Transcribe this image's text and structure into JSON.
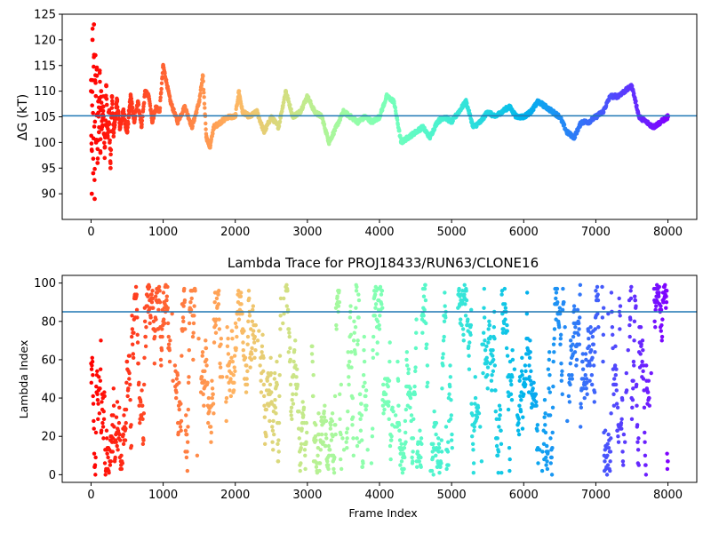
{
  "chart_data": [
    {
      "type": "scatter",
      "title": "",
      "xlabel": "",
      "ylabel": "ΔG (kT)",
      "xlim": [
        -400,
        8400
      ],
      "ylim": [
        85,
        125
      ],
      "xticks": [
        0,
        1000,
        2000,
        3000,
        4000,
        5000,
        6000,
        7000,
        8000
      ],
      "yticks": [
        90,
        95,
        100,
        105,
        110,
        115,
        120,
        125
      ],
      "hline": 105.2,
      "hline_color": "#1f77b4",
      "colormap": "rainbow (red at start → violet at end)",
      "grid": false,
      "legend": "none",
      "series": [
        {
          "points": [
            [
              0,
              110
            ],
            [
              10,
              90
            ],
            [
              20,
              120
            ],
            [
              30,
              94
            ],
            [
              40,
              123
            ],
            [
              50,
              89
            ],
            [
              60,
              117
            ],
            [
              70,
              100
            ],
            [
              80,
              113
            ],
            [
              90,
              96
            ],
            [
              100,
              108
            ],
            [
              110,
              102
            ],
            [
              120,
              114
            ],
            [
              130,
              98
            ],
            [
              140,
              110
            ],
            [
              150,
              103
            ],
            [
              170,
              107
            ],
            [
              190,
              99
            ],
            [
              210,
              111
            ],
            [
              230,
              101
            ],
            [
              250,
              106
            ],
            [
              270,
              95
            ],
            [
              290,
              109
            ],
            [
              310,
              102
            ],
            [
              330,
              104
            ],
            [
              360,
              108
            ],
            [
              400,
              103
            ],
            [
              450,
              106
            ],
            [
              500,
              102
            ],
            [
              550,
              109
            ],
            [
              600,
              104
            ],
            [
              650,
              108
            ],
            [
              700,
              103
            ],
            [
              750,
              110
            ],
            [
              800,
              109
            ],
            [
              850,
              104
            ],
            [
              900,
              107
            ],
            [
              950,
              106
            ],
            [
              1000,
              115
            ],
            [
              1100,
              108
            ],
            [
              1200,
              104
            ],
            [
              1300,
              107
            ],
            [
              1400,
              103
            ],
            [
              1500,
              108
            ],
            [
              1550,
              113
            ],
            [
              1600,
              101
            ],
            [
              1650,
              99
            ],
            [
              1700,
              103
            ],
            [
              1800,
              104
            ],
            [
              1900,
              105
            ],
            [
              2000,
              105
            ],
            [
              2050,
              110
            ],
            [
              2100,
              106
            ],
            [
              2200,
              105
            ],
            [
              2300,
              106
            ],
            [
              2400,
              102
            ],
            [
              2500,
              105
            ],
            [
              2600,
              103
            ],
            [
              2700,
              110
            ],
            [
              2800,
              105
            ],
            [
              2900,
              106
            ],
            [
              3000,
              109
            ],
            [
              3100,
              106
            ],
            [
              3200,
              105
            ],
            [
              3300,
              100
            ],
            [
              3400,
              103
            ],
            [
              3500,
              106
            ],
            [
              3600,
              105
            ],
            [
              3700,
              104
            ],
            [
              3800,
              105
            ],
            [
              3900,
              104
            ],
            [
              4000,
              105
            ],
            [
              4100,
              109
            ],
            [
              4200,
              108
            ],
            [
              4300,
              100
            ],
            [
              4400,
              101
            ],
            [
              4500,
              102
            ],
            [
              4600,
              103
            ],
            [
              4700,
              101
            ],
            [
              4800,
              104
            ],
            [
              4900,
              105
            ],
            [
              5000,
              104
            ],
            [
              5100,
              106
            ],
            [
              5200,
              108
            ],
            [
              5300,
              103
            ],
            [
              5400,
              104
            ],
            [
              5500,
              106
            ],
            [
              5600,
              105
            ],
            [
              5700,
              106
            ],
            [
              5800,
              107
            ],
            [
              5900,
              105
            ],
            [
              6000,
              105
            ],
            [
              6100,
              106
            ],
            [
              6200,
              108
            ],
            [
              6300,
              107
            ],
            [
              6400,
              106
            ],
            [
              6500,
              105
            ],
            [
              6600,
              102
            ],
            [
              6700,
              101
            ],
            [
              6800,
              104
            ],
            [
              6900,
              104
            ],
            [
              7000,
              105
            ],
            [
              7100,
              106
            ],
            [
              7200,
              109
            ],
            [
              7300,
              109
            ],
            [
              7400,
              110
            ],
            [
              7500,
              111
            ],
            [
              7600,
              105
            ],
            [
              7700,
              104
            ],
            [
              7800,
              103
            ],
            [
              7900,
              104
            ],
            [
              8000,
              105
            ]
          ]
        }
      ]
    },
    {
      "type": "scatter",
      "title": "Lambda Trace for PROJ18433/RUN63/CLONE16",
      "xlabel": "Frame Index",
      "ylabel": "Lambda Index",
      "xlim": [
        -400,
        8400
      ],
      "ylim": [
        -4,
        104
      ],
      "xticks": [
        0,
        1000,
        2000,
        3000,
        4000,
        5000,
        6000,
        7000,
        8000
      ],
      "yticks": [
        0,
        20,
        40,
        60,
        80,
        100
      ],
      "hline": 85,
      "hline_color": "#1f77b4",
      "colormap": "rainbow (red at start → violet at end)",
      "grid": false,
      "legend": "none",
      "frame_count": 8000,
      "lambda_max": 99
    }
  ]
}
